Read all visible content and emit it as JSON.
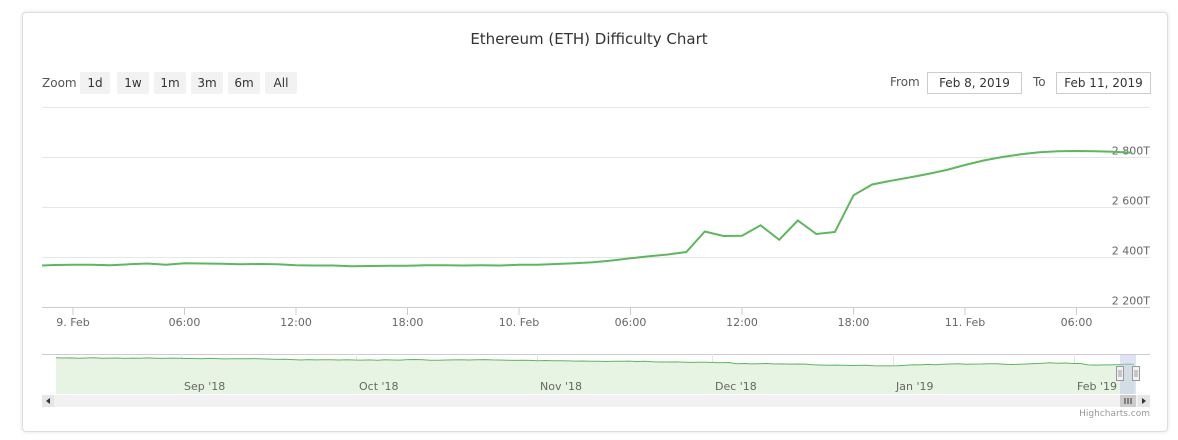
{
  "colors": {
    "line": "#5cb85c",
    "navigator_fill": "#e8f4e3",
    "grid": "#e6e6e6"
  },
  "toolbar": {
    "zoom_label": "Zoom",
    "buttons": [
      "1d",
      "1w",
      "1m",
      "3m",
      "6m",
      "All"
    ],
    "from_label": "From",
    "from_value": "Feb 8, 2019",
    "to_label": "To",
    "to_value": "Feb 11, 2019"
  },
  "credits": "Highcharts.com",
  "chart_data": {
    "type": "line",
    "title": "Ethereum (ETH) Difficulty Chart",
    "xlabel": "",
    "ylabel": "",
    "x_ticks": [
      "9. Feb",
      "06:00",
      "12:00",
      "18:00",
      "10. Feb",
      "06:00",
      "12:00",
      "18:00",
      "11. Feb",
      "06:00"
    ],
    "y_ticks": [
      "2 200T",
      "2 400T",
      "2 600T",
      "2 800T"
    ],
    "y_tick_values": [
      2200,
      2400,
      2600,
      2800
    ],
    "ylim": [
      2200,
      2800
    ],
    "y_unit": "T",
    "grid": true,
    "series": [
      {
        "x": [
          "2019-02-08 22:00",
          "2019-02-08 23:00",
          "2019-02-09 00:00",
          "2019-02-09 01:00",
          "2019-02-09 02:00",
          "2019-02-09 03:00",
          "2019-02-09 04:00",
          "2019-02-09 05:00",
          "2019-02-09 06:00",
          "2019-02-09 07:00",
          "2019-02-09 08:00",
          "2019-02-09 09:00",
          "2019-02-09 10:00",
          "2019-02-09 11:00",
          "2019-02-09 12:00",
          "2019-02-09 13:00",
          "2019-02-09 14:00",
          "2019-02-09 15:00",
          "2019-02-09 16:00",
          "2019-02-09 17:00",
          "2019-02-09 18:00",
          "2019-02-09 19:00",
          "2019-02-09 20:00",
          "2019-02-09 21:00",
          "2019-02-09 22:00",
          "2019-02-09 23:00",
          "2019-02-10 00:00",
          "2019-02-10 01:00",
          "2019-02-10 02:00",
          "2019-02-10 03:00",
          "2019-02-10 04:00",
          "2019-02-10 05:00",
          "2019-02-10 06:00",
          "2019-02-10 07:00",
          "2019-02-10 08:00",
          "2019-02-10 09:00",
          "2019-02-10 10:00",
          "2019-02-10 11:00",
          "2019-02-10 12:00",
          "2019-02-10 13:00",
          "2019-02-10 14:00",
          "2019-02-10 15:00",
          "2019-02-10 16:00",
          "2019-02-10 17:00",
          "2019-02-10 18:00",
          "2019-02-10 19:00",
          "2019-02-10 20:00",
          "2019-02-10 21:00",
          "2019-02-10 22:00",
          "2019-02-10 23:00",
          "2019-02-11 00:00",
          "2019-02-11 01:00",
          "2019-02-11 02:00",
          "2019-02-11 03:00",
          "2019-02-11 04:00",
          "2019-02-11 05:00",
          "2019-02-11 06:00",
          "2019-02-11 07:00",
          "2019-02-11 08:00",
          "2019-02-11 09:00"
        ],
        "values": [
          2366,
          2368,
          2369,
          2369,
          2367,
          2371,
          2374,
          2369,
          2375,
          2374,
          2373,
          2371,
          2372,
          2371,
          2367,
          2366,
          2366,
          2363,
          2364,
          2365,
          2365,
          2367,
          2367,
          2366,
          2367,
          2366,
          2369,
          2369,
          2372,
          2375,
          2379,
          2386,
          2395,
          2403,
          2410,
          2420,
          2502,
          2484,
          2485,
          2527,
          2469,
          2546,
          2492,
          2500,
          2647,
          2690,
          2705,
          2718,
          2732,
          2748,
          2768,
          2786,
          2800,
          2811,
          2819,
          2823,
          2824,
          2823,
          2821,
          2817
        ]
      }
    ],
    "navigator": {
      "x_ticks": [
        "Sep '18",
        "Oct '18",
        "Nov '18",
        "Dec '18",
        "Jan '19",
        "Feb '19"
      ],
      "ylim": [
        2000,
        3100
      ],
      "values": [
        2998,
        2990,
        2993,
        2985,
        2989,
        2995,
        2983,
        2987,
        2990,
        2980,
        2986,
        2982,
        2993,
        2985,
        2979,
        2988,
        2983,
        2975,
        2977,
        2972,
        2980,
        2974,
        2966,
        2971,
        2969,
        2972,
        2973,
        2965,
        2960,
        2952,
        2958,
        2947,
        2935,
        2945,
        2938,
        2942,
        2940,
        2936,
        2943,
        2935,
        2931,
        2938,
        2929,
        2940,
        2935,
        2932,
        2945,
        2948,
        2940,
        2929,
        2930,
        2935,
        2938,
        2944,
        2936,
        2942,
        2947,
        2938,
        2935,
        2929,
        2924,
        2928,
        2924,
        2916,
        2921,
        2912,
        2916,
        2910,
        2905,
        2908,
        2900,
        2902,
        2895,
        2899,
        2903,
        2905,
        2893,
        2898,
        2886,
        2879,
        2881,
        2883,
        2877,
        2870,
        2874,
        2871,
        2866,
        2858,
        2865,
        2834,
        2838,
        2829,
        2832,
        2839,
        2824,
        2828,
        2822,
        2826,
        2821,
        2805,
        2798,
        2788,
        2795,
        2790,
        2784,
        2786,
        2788,
        2779,
        2772,
        2774,
        2776,
        2786,
        2806,
        2801,
        2813,
        2804,
        2818,
        2824,
        2830,
        2819,
        2822,
        2826,
        2833,
        2830,
        2820,
        2812,
        2818,
        2826,
        2836,
        2845,
        2860,
        2847,
        2852,
        2840,
        2839,
        2800,
        2796,
        2801,
        2801,
        2808,
        2822,
        2820
      ]
    }
  }
}
